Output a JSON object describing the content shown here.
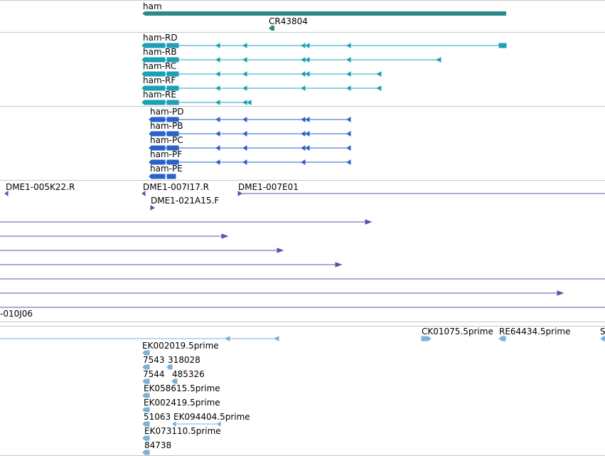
{
  "colors": {
    "gene": "#2a8a8a",
    "transcript": "#1ba0b8",
    "protein": "#2a62c8",
    "clone": "#6a4ca8",
    "est": "#7cb0d6",
    "divider": "#c8c8c8"
  },
  "genes": {
    "ham": "ham",
    "cr": "CR43804"
  },
  "transcripts": [
    "ham-RD",
    "ham-RB",
    "ham-RC",
    "ham-RF",
    "ham-RE"
  ],
  "proteins": [
    "ham-PD",
    "ham-PB",
    "ham-PC",
    "ham-PF",
    "ham-PE"
  ],
  "clones": {
    "c1": "DME1-005K22.R",
    "c2": "DME1-007I17.R",
    "c3": "DME1-007E01",
    "c4": "DME1-021A15.F",
    "c5": "-010J06"
  },
  "ests": {
    "e1": "CK01075.5prime",
    "e2": "RE64434.5prime",
    "e3": "S",
    "e4": "EK002019.5prime",
    "e5": "7543",
    "e6": "318028",
    "e7": "7544",
    "e8": "485326",
    "e9": "EK058615.5prime",
    "e10": "EK002419.5prime",
    "e11": "51063",
    "e12": "EK094404.5prime",
    "e13": "EK073110.5prime",
    "e14": "84738"
  }
}
